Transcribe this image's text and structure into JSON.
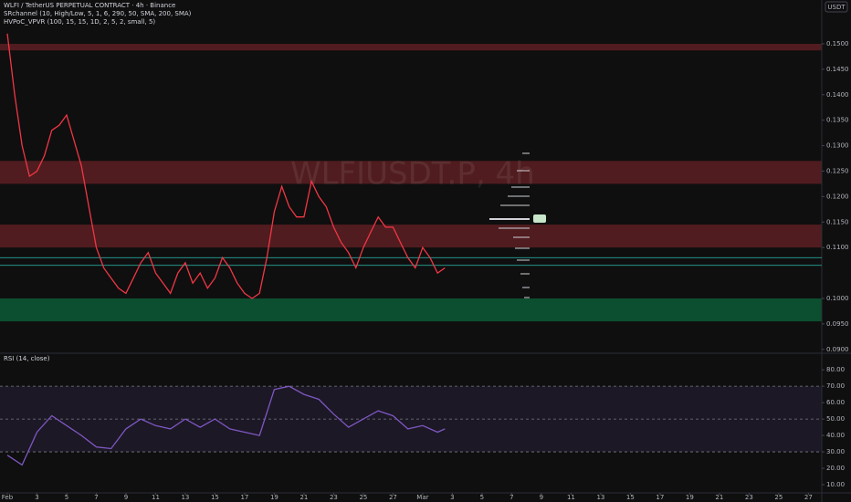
{
  "header": {
    "symbol": "WLFI / TetherUS PERPETUAL CONTRACT · 4h · Binance",
    "indicator1": "SRchannel (10, High/Low, 5, 1, 6, 290, 50, SMA, 200, SMA)",
    "indicator2": "HVPoC_VPVR (100, 15, 15, 1D, 2, 5, 2, small, 5)",
    "currency": "USDT",
    "watermark": "WLFIUSDT.P, 4h"
  },
  "chart_data": [
    {
      "type": "line",
      "color": "#f23645",
      "x": [
        0,
        0.5,
        1,
        1.5,
        2,
        2.5,
        3,
        3.5,
        4,
        4.5,
        5,
        5.5,
        6,
        6.5,
        7,
        7.5,
        8,
        8.5,
        9,
        9.5,
        10,
        10.5,
        11,
        11.5,
        12,
        12.5,
        13,
        13.5,
        14,
        14.5,
        15,
        15.5,
        16,
        16.5,
        17,
        17.5,
        18,
        18.5,
        19,
        19.5,
        20,
        20.5,
        21,
        21.5,
        22,
        22.5,
        23,
        23.5,
        24,
        24.5,
        25,
        25.5,
        26,
        26.5,
        27,
        27.5,
        28,
        28.5,
        29,
        29.5
      ],
      "values": [
        0.152,
        0.14,
        0.13,
        0.124,
        0.125,
        0.128,
        0.133,
        0.134,
        0.136,
        0.131,
        0.126,
        0.118,
        0.11,
        0.106,
        0.104,
        0.102,
        0.101,
        0.104,
        0.107,
        0.109,
        0.105,
        0.103,
        0.101,
        0.105,
        0.107,
        0.103,
        0.105,
        0.102,
        0.104,
        0.108,
        0.106,
        0.103,
        0.101,
        0.1,
        0.101,
        0.108,
        0.117,
        0.122,
        0.118,
        0.116,
        0.116,
        0.123,
        0.12,
        0.118,
        0.114,
        0.111,
        0.109,
        0.106,
        0.11,
        0.113,
        0.116,
        0.114,
        0.114,
        0.111,
        0.108,
        0.106,
        0.11,
        0.108,
        0.105,
        0.106
      ],
      "xlim": [
        -0.49,
        54.9
      ],
      "ylim": [
        0.0896,
        0.1586
      ],
      "yticks": [
        {
          "value": 0.15,
          "label": "0.1500"
        },
        {
          "value": 0.145,
          "label": "0.1450"
        },
        {
          "value": 0.14,
          "label": "0.1400"
        },
        {
          "value": 0.135,
          "label": "0.1350"
        },
        {
          "value": 0.13,
          "label": "0.1300"
        },
        {
          "value": 0.125,
          "label": "0.1250"
        },
        {
          "value": 0.12,
          "label": "0.1200"
        },
        {
          "value": 0.115,
          "label": "0.1150"
        },
        {
          "value": 0.11,
          "label": "0.1100"
        },
        {
          "value": 0.1,
          "label": "0.1000"
        },
        {
          "value": 0.095,
          "label": "0.0950"
        },
        {
          "value": 0.09,
          "label": "0.0900"
        }
      ],
      "zones": [
        {
          "range": [
            0.1487,
            0.15
          ],
          "color": "#5c1e22"
        },
        {
          "range": [
            0.1225,
            0.127
          ],
          "color": "#5c1e22"
        },
        {
          "range": [
            0.11,
            0.1145
          ],
          "color": "#5c1e22"
        },
        {
          "range": [
            0.0955,
            0.1
          ],
          "color": "#0c5a36"
        }
      ],
      "levels": [
        0.108,
        0.1065
      ],
      "level_color": "#26a69a"
    },
    {
      "type": "line",
      "title": "RSI (14, close)",
      "color": "#7e57c2",
      "x": [
        0,
        1,
        2,
        3,
        4,
        5,
        6,
        7,
        8,
        9,
        10,
        11,
        12,
        13,
        14,
        15,
        16,
        17,
        18,
        19,
        20,
        21,
        22,
        23,
        24,
        25,
        26,
        27,
        28,
        29,
        29.5
      ],
      "values": [
        28,
        22,
        42,
        52,
        46,
        40,
        33,
        32,
        44,
        50,
        46,
        44,
        50,
        45,
        50,
        44,
        42,
        40,
        68,
        70,
        65,
        62,
        53,
        45,
        50,
        55,
        52,
        44,
        46,
        42,
        44
      ],
      "xlim": [
        -0.49,
        54.9
      ],
      "ylim": [
        5,
        89
      ],
      "yticks": [
        {
          "value": 80,
          "label": "80.00"
        },
        {
          "value": 70,
          "label": "70.00"
        },
        {
          "value": 60,
          "label": "60.00"
        },
        {
          "value": 50,
          "label": "50.00"
        },
        {
          "value": 40,
          "label": "40.00"
        },
        {
          "value": 30,
          "label": "30.00"
        },
        {
          "value": 20,
          "label": "20.00"
        },
        {
          "value": 10,
          "label": "10.00"
        }
      ],
      "band": [
        30,
        70
      ],
      "band_color": "#7e57c2",
      "levels": [
        70,
        50,
        30
      ],
      "xticks": [
        {
          "value": 0,
          "label": "Feb"
        },
        {
          "value": 2,
          "label": "3"
        },
        {
          "value": 4,
          "label": "5"
        },
        {
          "value": 6,
          "label": "7"
        },
        {
          "value": 8,
          "label": "9"
        },
        {
          "value": 10,
          "label": "11"
        },
        {
          "value": 12,
          "label": "13"
        },
        {
          "value": 14,
          "label": "15"
        },
        {
          "value": 16,
          "label": "17"
        },
        {
          "value": 18,
          "label": "19"
        },
        {
          "value": 20,
          "label": "21"
        },
        {
          "value": 22,
          "label": "23"
        },
        {
          "value": 24,
          "label": "25"
        },
        {
          "value": 26,
          "label": "27"
        },
        {
          "value": 28,
          "label": "Mar"
        },
        {
          "value": 30,
          "label": "3"
        },
        {
          "value": 32,
          "label": "5"
        },
        {
          "value": 34,
          "label": "7"
        },
        {
          "value": 36,
          "label": "9"
        },
        {
          "value": 38,
          "label": "11"
        },
        {
          "value": 40,
          "label": "13"
        },
        {
          "value": 42,
          "label": "15"
        },
        {
          "value": 44,
          "label": "17"
        },
        {
          "value": 46,
          "label": "19"
        },
        {
          "value": 48,
          "label": "21"
        },
        {
          "value": 50,
          "label": "23"
        },
        {
          "value": 52,
          "label": "25"
        },
        {
          "value": 54,
          "label": "27"
        }
      ]
    }
  ]
}
